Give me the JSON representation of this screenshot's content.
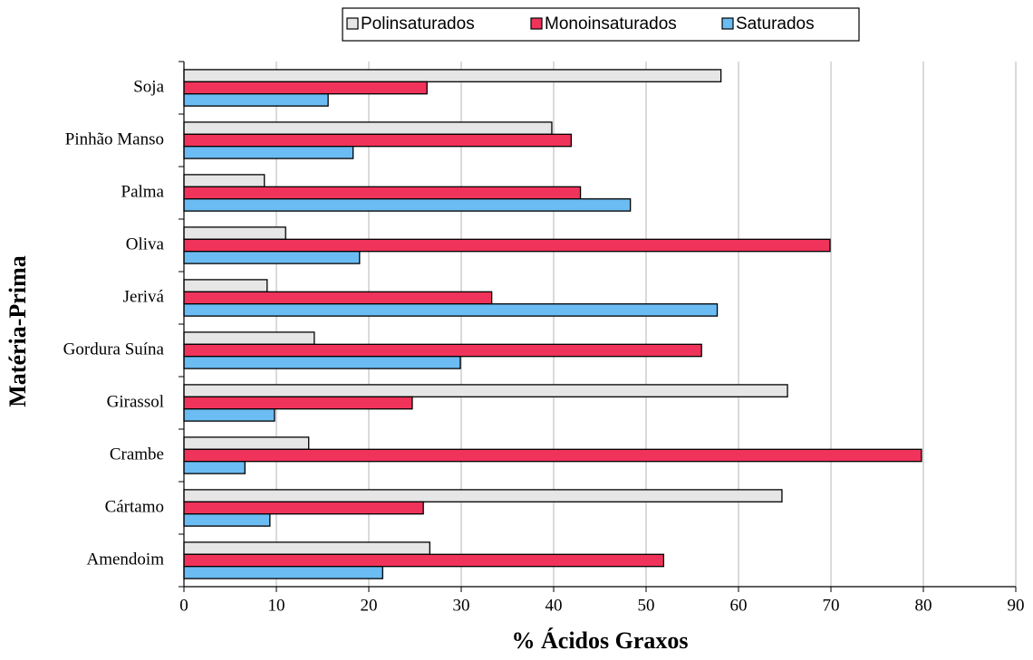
{
  "chart_data": {
    "type": "bar",
    "orientation": "horizontal",
    "xlabel": "% Ácidos Graxos",
    "ylabel": "Matéria-Prima",
    "xlim": [
      0,
      90
    ],
    "x_ticks": [
      "0",
      "10",
      "20",
      "30",
      "40",
      "50",
      "60",
      "70",
      "80",
      "90"
    ],
    "grid": "vertical",
    "legend_position": "top",
    "categories": [
      "Soja",
      "Pinhão Manso",
      "Palma",
      "Oliva",
      "Jerivá",
      "Gordura Suína",
      "Girassol",
      "Crambe",
      "Cártamo",
      "Amendoim"
    ],
    "series": [
      {
        "name": "Polinsaturados",
        "color": "#e6e6e6",
        "values": [
          58.1,
          39.8,
          8.7,
          11.0,
          9.0,
          14.1,
          65.3,
          13.5,
          64.7,
          26.6
        ]
      },
      {
        "name": "Monoinsaturados",
        "color": "#f0335a",
        "values": [
          26.3,
          41.9,
          42.9,
          69.9,
          33.3,
          56.0,
          24.7,
          79.8,
          25.9,
          51.9
        ]
      },
      {
        "name": "Saturados",
        "color": "#6bbcf2",
        "values": [
          15.6,
          18.3,
          48.3,
          19.0,
          57.7,
          29.9,
          9.8,
          6.6,
          9.3,
          21.5
        ]
      }
    ]
  }
}
